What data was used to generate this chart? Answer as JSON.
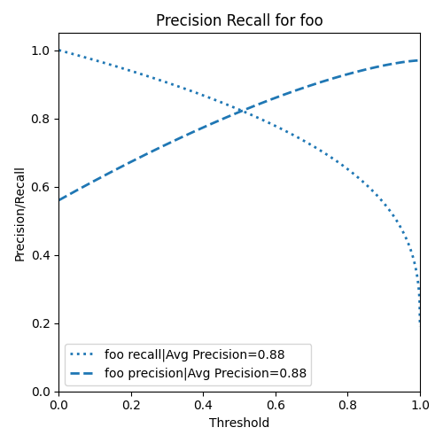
{
  "title": "Precision Recall for foo",
  "xlabel": "Threshold",
  "ylabel": "Precision/Recall",
  "recall_label": "foo recall|Avg Precision=0.88",
  "precision_label": "foo precision|Avg Precision=0.88",
  "line_color": "#1f77b4",
  "xlim": [
    0.0,
    1.0
  ],
  "ylim": [
    0.0,
    1.05
  ],
  "figsize": [
    5.0,
    5.0
  ],
  "dpi": 100
}
